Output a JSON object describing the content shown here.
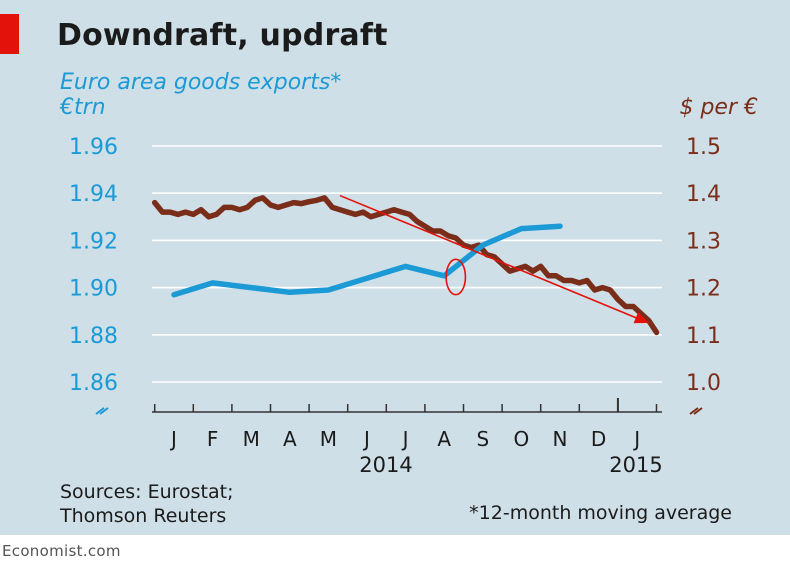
{
  "title": "Downdraft, updraft",
  "subtitle": "Euro area goods exports*",
  "left_unit": "€trn",
  "right_unit": "$ per €",
  "sources_line1": "Sources: Eurostat;",
  "sources_line2": "Thomson Reuters",
  "note": "*12-month moving average",
  "footer": "Economist.com",
  "colors": {
    "exports": "#1c9ad6",
    "exchange_rate": "#7a2e1a",
    "annotation": "#e3120b",
    "background": "#cfdfe7"
  },
  "chart_data": {
    "type": "line",
    "x_tick_labels": [
      "J",
      "F",
      "M",
      "A",
      "M",
      "J",
      "J",
      "A",
      "S",
      "O",
      "N",
      "D",
      "J"
    ],
    "year_labels": [
      "2014",
      "2015"
    ],
    "left_axis": {
      "ylim": [
        1.86,
        1.96
      ],
      "ticks": [
        "1.96",
        "1.94",
        "1.92",
        "1.90",
        "1.88",
        "1.86"
      ]
    },
    "right_axis": {
      "ylim": [
        1.0,
        1.5
      ],
      "ticks": [
        "1.5",
        "1.4",
        "1.3",
        "1.2",
        "1.1",
        "1.0"
      ]
    },
    "grid": true,
    "series": [
      {
        "axis": "left",
        "x": [
          0,
          1,
          2,
          3,
          4,
          5,
          6,
          7,
          8,
          9,
          10
        ],
        "values": [
          1.897,
          1.902,
          1.9,
          1.898,
          1.899,
          1.904,
          1.909,
          1.905,
          1.918,
          1.925,
          1.926
        ]
      },
      {
        "axis": "right",
        "x": [
          -0.5,
          -0.3,
          -0.1,
          0.1,
          0.3,
          0.5,
          0.7,
          0.9,
          1.1,
          1.3,
          1.5,
          1.7,
          1.9,
          2.1,
          2.3,
          2.5,
          2.7,
          2.9,
          3.1,
          3.3,
          3.5,
          3.7,
          3.9,
          4.1,
          4.3,
          4.5,
          4.7,
          4.9,
          5.1,
          5.3,
          5.5,
          5.7,
          5.9,
          6.1,
          6.3,
          6.5,
          6.7,
          6.9,
          7.1,
          7.3,
          7.5,
          7.7,
          7.9,
          8.1,
          8.3,
          8.5,
          8.7,
          8.9,
          9.1,
          9.3,
          9.5,
          9.7,
          9.9,
          10.1,
          10.3,
          10.5,
          10.7,
          10.9,
          11.1,
          11.3,
          11.5,
          11.7,
          11.9,
          12.1,
          12.3,
          12.5
        ],
        "values": [
          1.38,
          1.36,
          1.36,
          1.355,
          1.36,
          1.355,
          1.365,
          1.35,
          1.355,
          1.37,
          1.37,
          1.365,
          1.37,
          1.385,
          1.39,
          1.375,
          1.37,
          1.375,
          1.38,
          1.378,
          1.382,
          1.385,
          1.39,
          1.37,
          1.365,
          1.36,
          1.355,
          1.36,
          1.35,
          1.355,
          1.36,
          1.365,
          1.36,
          1.355,
          1.34,
          1.33,
          1.32,
          1.32,
          1.31,
          1.305,
          1.29,
          1.285,
          1.29,
          1.27,
          1.265,
          1.25,
          1.235,
          1.24,
          1.245,
          1.235,
          1.245,
          1.225,
          1.225,
          1.215,
          1.215,
          1.21,
          1.215,
          1.195,
          1.2,
          1.195,
          1.175,
          1.16,
          1.16,
          1.145,
          1.13,
          1.105
        ]
      }
    ],
    "annotations": [
      {
        "type": "arrow",
        "axis": "right",
        "from": [
          4.3,
          1.395
        ],
        "to": [
          12.3,
          1.125
        ]
      },
      {
        "type": "ellipse",
        "axis": "left",
        "center": [
          7.3,
          1.9045
        ],
        "rx": 0.25,
        "ry": 0.0075
      }
    ]
  }
}
